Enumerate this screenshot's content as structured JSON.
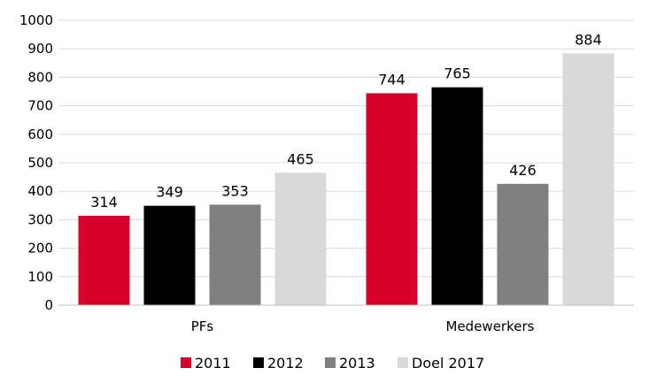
{
  "chart_data": {
    "type": "bar",
    "categories": [
      "PFs",
      "Medewerkers"
    ],
    "series": [
      {
        "name": "2011",
        "values": [
          314,
          744
        ],
        "color": "#d7002b"
      },
      {
        "name": "2012",
        "values": [
          349,
          765
        ],
        "color": "#000000"
      },
      {
        "name": "2013",
        "values": [
          353,
          426
        ],
        "color": "#808080"
      },
      {
        "name": "Doel 2017",
        "values": [
          465,
          884
        ],
        "color": "#d9d9d9"
      }
    ],
    "yticks": [
      "0",
      "100",
      "200",
      "300",
      "400",
      "500",
      "600",
      "700",
      "800",
      "900",
      "1000"
    ],
    "ylim": [
      0,
      1000
    ],
    "grid": true,
    "legend": "bottom",
    "data_labels": true
  }
}
